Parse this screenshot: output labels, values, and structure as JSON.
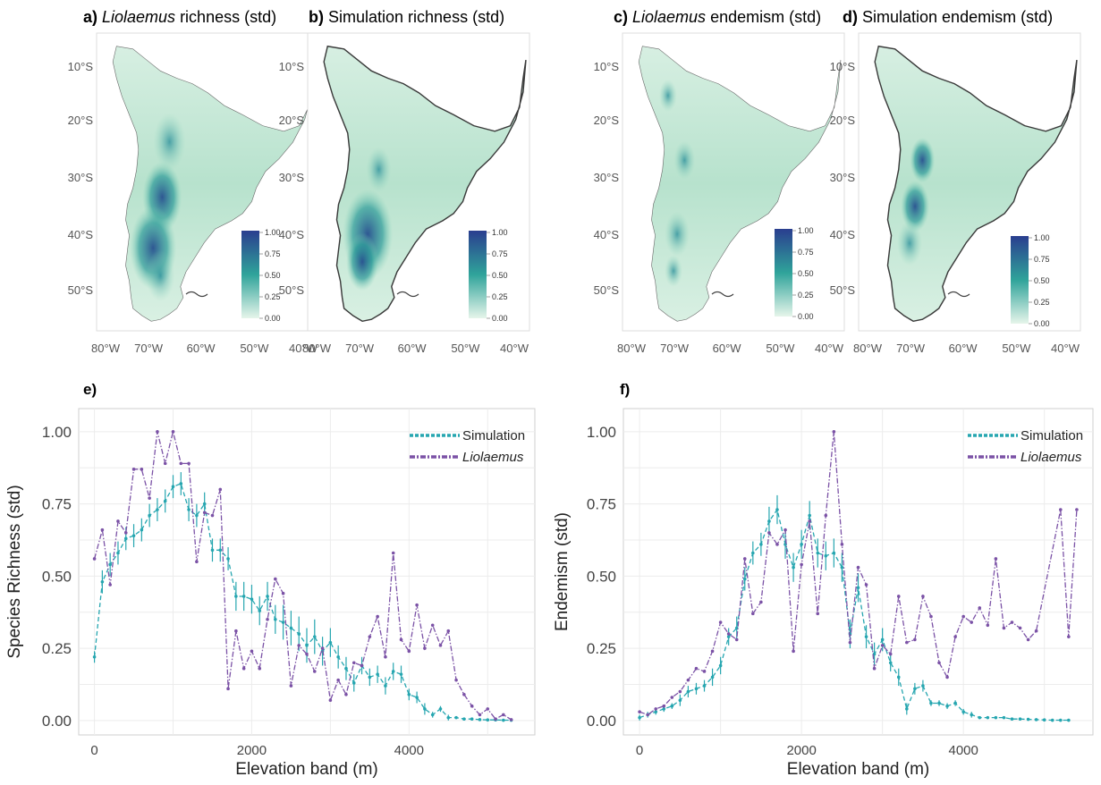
{
  "map_panels": [
    {
      "label": "a)",
      "italic": "Liolaemus",
      "rest": " richness (std)"
    },
    {
      "label": "b)",
      "italic": "",
      "rest": "Simulation richness (std)"
    },
    {
      "label": "c)",
      "italic": "Liolaemus",
      "rest": " endemism (std)"
    },
    {
      "label": "d)",
      "italic": "",
      "rest": "Simulation endemism (std)"
    }
  ],
  "map_axes": {
    "lat_ticks": [
      "10°S",
      "20°S",
      "30°S",
      "40°S",
      "50°S"
    ],
    "lon_ticks": [
      "80°W",
      "70°W",
      "60°W",
      "50°W",
      "40°W"
    ],
    "legend_ticks": [
      "1.00",
      "0.75",
      "0.50",
      "0.25",
      "0.00"
    ]
  },
  "colors": {
    "simulation": "#26a6b0",
    "liolaemus": "#7b52a6",
    "scale_low": "#e6f5ea",
    "scale_mid": "#2fa39a",
    "scale_high": "#2a3e8f"
  },
  "chart_data": [
    {
      "panel": "e)",
      "type": "line",
      "xlabel": "Elevation band (m)",
      "ylabel": "Species Richness (std)",
      "xlim": [
        -200,
        5600
      ],
      "ylim": [
        -0.05,
        1.08
      ],
      "xticks": [
        0,
        2000,
        4000
      ],
      "yticks": [
        0.0,
        0.25,
        0.5,
        0.75,
        1.0
      ],
      "ytick_labels": [
        "0.00",
        "0.25",
        "0.50",
        "0.75",
        "1.00"
      ],
      "legend_position": "top-right",
      "series": [
        {
          "name": "Simulation",
          "style": "dashed-error",
          "x": [
            0,
            100,
            200,
            300,
            400,
            500,
            600,
            700,
            800,
            900,
            1000,
            1100,
            1200,
            1300,
            1400,
            1500,
            1600,
            1700,
            1800,
            1900,
            2000,
            2100,
            2200,
            2300,
            2400,
            2500,
            2600,
            2700,
            2800,
            2900,
            3000,
            3100,
            3200,
            3300,
            3400,
            3500,
            3600,
            3700,
            3800,
            3900,
            4000,
            4100,
            4200,
            4300,
            4400,
            4500,
            4600,
            4700,
            4800,
            4900,
            5000,
            5100,
            5200,
            5300
          ],
          "y": [
            0.22,
            0.48,
            0.54,
            0.58,
            0.63,
            0.64,
            0.66,
            0.71,
            0.73,
            0.76,
            0.81,
            0.82,
            0.73,
            0.71,
            0.75,
            0.59,
            0.59,
            0.56,
            0.43,
            0.43,
            0.42,
            0.38,
            0.43,
            0.35,
            0.34,
            0.32,
            0.3,
            0.26,
            0.29,
            0.24,
            0.27,
            0.22,
            0.18,
            0.13,
            0.19,
            0.15,
            0.16,
            0.12,
            0.17,
            0.16,
            0.09,
            0.08,
            0.04,
            0.02,
            0.04,
            0.01,
            0.01,
            0.005,
            0.005,
            0.003,
            0.002,
            0.002,
            0.001,
            0.001
          ],
          "err": [
            0.02,
            0.04,
            0.04,
            0.04,
            0.04,
            0.04,
            0.04,
            0.04,
            0.04,
            0.04,
            0.04,
            0.04,
            0.04,
            0.04,
            0.04,
            0.04,
            0.04,
            0.04,
            0.05,
            0.05,
            0.05,
            0.05,
            0.05,
            0.05,
            0.06,
            0.06,
            0.06,
            0.06,
            0.06,
            0.05,
            0.05,
            0.04,
            0.04,
            0.03,
            0.03,
            0.03,
            0.03,
            0.03,
            0.03,
            0.03,
            0.02,
            0.02,
            0.02,
            0.01,
            0.01,
            0.01,
            0.005,
            0.005,
            0.005,
            0.005,
            0.004,
            0.003,
            0.002,
            0.002
          ]
        },
        {
          "name": "Liolaemus",
          "style": "dashdot",
          "x": [
            0,
            100,
            200,
            300,
            400,
            500,
            600,
            700,
            800,
            900,
            1000,
            1100,
            1200,
            1300,
            1400,
            1500,
            1600,
            1700,
            1800,
            1900,
            2000,
            2100,
            2200,
            2300,
            2400,
            2500,
            2600,
            2700,
            2800,
            2900,
            3000,
            3100,
            3200,
            3300,
            3400,
            3500,
            3600,
            3700,
            3800,
            3900,
            4000,
            4100,
            4200,
            4300,
            4400,
            4500,
            4600,
            4700,
            4800,
            4900,
            5000,
            5100,
            5200,
            5300
          ],
          "y": [
            0.56,
            0.66,
            0.47,
            0.69,
            0.65,
            0.87,
            0.87,
            0.77,
            1.0,
            0.89,
            1.0,
            0.89,
            0.89,
            0.55,
            0.72,
            0.71,
            0.8,
            0.11,
            0.31,
            0.18,
            0.24,
            0.18,
            0.35,
            0.49,
            0.44,
            0.12,
            0.26,
            0.23,
            0.17,
            0.25,
            0.07,
            0.14,
            0.09,
            0.2,
            0.19,
            0.29,
            0.36,
            0.22,
            0.58,
            0.28,
            0.24,
            0.4,
            0.25,
            0.33,
            0.26,
            0.31,
            0.14,
            0.09,
            0.05,
            0.02,
            0.04,
            0.005,
            0.02,
            0.003
          ]
        }
      ]
    },
    {
      "panel": "f)",
      "type": "line",
      "xlabel": "Elevation band (m)",
      "ylabel": "Endemism (std)",
      "xlim": [
        -200,
        5600
      ],
      "ylim": [
        -0.05,
        1.08
      ],
      "xticks": [
        0,
        2000,
        4000
      ],
      "yticks": [
        0.0,
        0.25,
        0.5,
        0.75,
        1.0
      ],
      "ytick_labels": [
        "0.00",
        "0.25",
        "0.50",
        "0.75",
        "1.00"
      ],
      "legend_position": "top-right",
      "series": [
        {
          "name": "Simulation",
          "style": "dashed-error",
          "x": [
            0,
            100,
            200,
            300,
            400,
            500,
            600,
            700,
            800,
            900,
            1000,
            1100,
            1200,
            1300,
            1400,
            1500,
            1600,
            1700,
            1800,
            1900,
            2000,
            2100,
            2200,
            2300,
            2400,
            2500,
            2600,
            2700,
            2800,
            2900,
            3000,
            3100,
            3200,
            3300,
            3400,
            3500,
            3600,
            3700,
            3800,
            3900,
            4000,
            4100,
            4200,
            4300,
            4400,
            4500,
            4600,
            4700,
            4800,
            4900,
            5000,
            5100,
            5200,
            5300
          ],
          "y": [
            0.01,
            0.02,
            0.03,
            0.04,
            0.05,
            0.07,
            0.1,
            0.11,
            0.12,
            0.15,
            0.19,
            0.29,
            0.32,
            0.49,
            0.58,
            0.61,
            0.69,
            0.73,
            0.61,
            0.53,
            0.61,
            0.71,
            0.58,
            0.57,
            0.58,
            0.53,
            0.3,
            0.46,
            0.29,
            0.23,
            0.28,
            0.2,
            0.15,
            0.04,
            0.11,
            0.12,
            0.06,
            0.06,
            0.05,
            0.06,
            0.03,
            0.02,
            0.01,
            0.01,
            0.01,
            0.01,
            0.005,
            0.005,
            0.004,
            0.003,
            0.002,
            0.001,
            0.001,
            0.001
          ],
          "err": [
            0.01,
            0.01,
            0.01,
            0.01,
            0.01,
            0.02,
            0.02,
            0.02,
            0.02,
            0.03,
            0.03,
            0.03,
            0.04,
            0.04,
            0.04,
            0.04,
            0.05,
            0.05,
            0.05,
            0.05,
            0.05,
            0.05,
            0.05,
            0.05,
            0.05,
            0.05,
            0.05,
            0.05,
            0.04,
            0.04,
            0.04,
            0.03,
            0.03,
            0.02,
            0.02,
            0.02,
            0.01,
            0.01,
            0.01,
            0.01,
            0.01,
            0.01,
            0.005,
            0.005,
            0.005,
            0.005,
            0.003,
            0.003,
            0.002,
            0.002,
            0.002,
            0.001,
            0.001,
            0.001
          ]
        },
        {
          "name": "Liolaemus",
          "style": "dashdot",
          "x": [
            0,
            100,
            200,
            300,
            400,
            500,
            600,
            700,
            800,
            900,
            1000,
            1100,
            1200,
            1300,
            1400,
            1500,
            1600,
            1700,
            1800,
            1900,
            2000,
            2100,
            2200,
            2300,
            2400,
            2500,
            2600,
            2700,
            2800,
            2900,
            3000,
            3100,
            3200,
            3300,
            3400,
            3500,
            3600,
            3700,
            3800,
            3900,
            4000,
            4100,
            4200,
            4300,
            4400,
            4500,
            4600,
            4700,
            4800,
            4900,
            5200,
            5300,
            5400
          ],
          "y": [
            0.03,
            0.02,
            0.04,
            0.05,
            0.08,
            0.1,
            0.14,
            0.18,
            0.17,
            0.24,
            0.34,
            0.3,
            0.28,
            0.56,
            0.37,
            0.41,
            0.65,
            0.61,
            0.66,
            0.24,
            0.54,
            0.69,
            0.37,
            0.71,
            1.0,
            0.61,
            0.27,
            0.53,
            0.47,
            0.18,
            0.26,
            0.23,
            0.43,
            0.27,
            0.28,
            0.43,
            0.36,
            0.2,
            0.15,
            0.29,
            0.36,
            0.34,
            0.39,
            0.33,
            0.56,
            0.32,
            0.34,
            0.32,
            0.28,
            0.31,
            0.73,
            0.29,
            0.73
          ]
        }
      ]
    }
  ]
}
